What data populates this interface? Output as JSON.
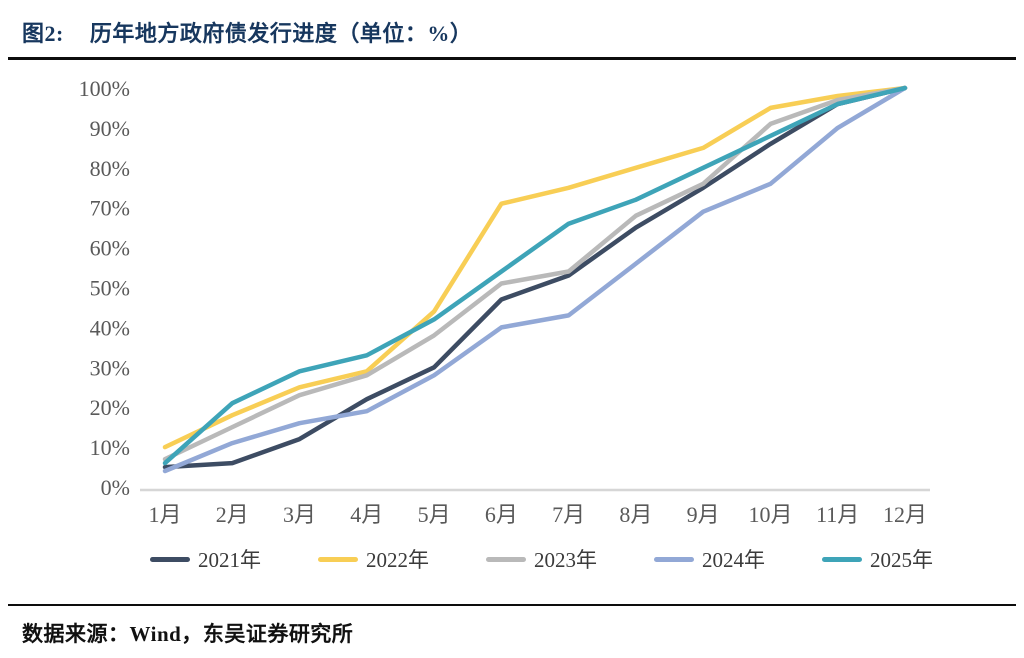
{
  "header": {
    "figure_label": "图2:",
    "title": "历年地方政府债发行进度（单位：%）"
  },
  "chart_data": {
    "type": "line",
    "title": "历年地方政府债发行进度",
    "unit": "%",
    "xlabel": "",
    "ylabel": "",
    "ylim": [
      0,
      100
    ],
    "grid": false,
    "legend_position": "bottom",
    "categories": [
      "1月",
      "2月",
      "3月",
      "4月",
      "5月",
      "6月",
      "7月",
      "8月",
      "9月",
      "10月",
      "11月",
      "12月"
    ],
    "y_ticks": [
      "0%",
      "10%",
      "20%",
      "30%",
      "40%",
      "50%",
      "60%",
      "70%",
      "80%",
      "90%",
      "100%"
    ],
    "series": [
      {
        "name": "2021年",
        "color": "#3d4c63",
        "values": [
          5,
          6,
          12,
          22,
          30,
          47,
          53,
          65,
          75,
          86,
          96,
          100
        ]
      },
      {
        "name": "2022年",
        "color": "#f8ce55",
        "values": [
          10,
          18,
          25,
          29,
          44,
          71,
          75,
          80,
          85,
          95,
          98,
          100
        ]
      },
      {
        "name": "2023年",
        "color": "#b9b9b9",
        "values": [
          7,
          15,
          23,
          28,
          38,
          51,
          54,
          68,
          76,
          91,
          97,
          100
        ]
      },
      {
        "name": "2024年",
        "color": "#92a8d6",
        "values": [
          4,
          11,
          16,
          19,
          28,
          40,
          43,
          56,
          69,
          76,
          90,
          100
        ]
      },
      {
        "name": "2025年",
        "color": "#3ea4b8",
        "values": [
          6,
          21,
          29,
          33,
          42,
          54,
          66,
          72,
          80,
          88,
          96,
          100
        ]
      }
    ]
  },
  "footer": {
    "source": "数据来源：Wind，东吴证券研究所"
  },
  "colors": {
    "title": "#17375e",
    "axis_label": "#595959",
    "axis_line": "#d6d6d6",
    "rule": "#0d0d0d"
  }
}
